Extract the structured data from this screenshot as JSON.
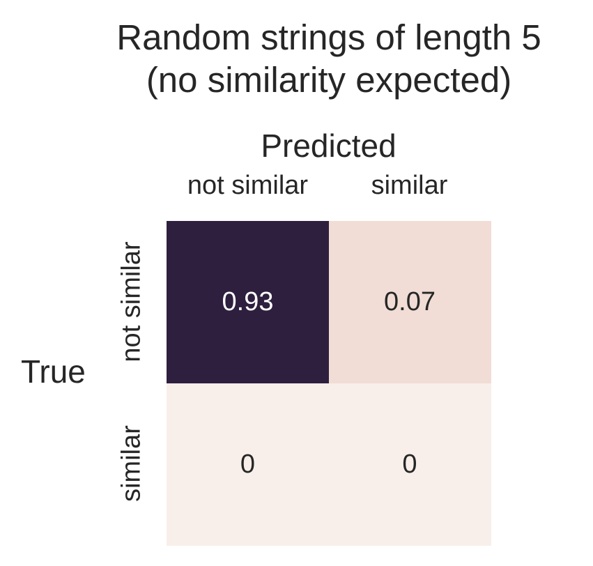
{
  "chart_data": {
    "type": "heatmap",
    "title": [
      "Random strings of length 5",
      "(no similarity expected)"
    ],
    "xlabel": "Predicted",
    "ylabel": "True",
    "x_tick_position": "top",
    "x_categories": [
      "not similar",
      "similar"
    ],
    "y_categories": [
      "not similar",
      "similar"
    ],
    "values": [
      [
        0.93,
        0.07
      ],
      [
        0,
        0
      ]
    ],
    "cell_labels": [
      [
        "0.93",
        "0.07"
      ],
      [
        "0",
        "0"
      ]
    ],
    "colorbar": false,
    "colors": {
      "low": "#f8efea",
      "mid": "#f1dcd5",
      "high": "#2e1f3e",
      "text_dark": "#262626",
      "text_light": "#ffffff"
    }
  }
}
